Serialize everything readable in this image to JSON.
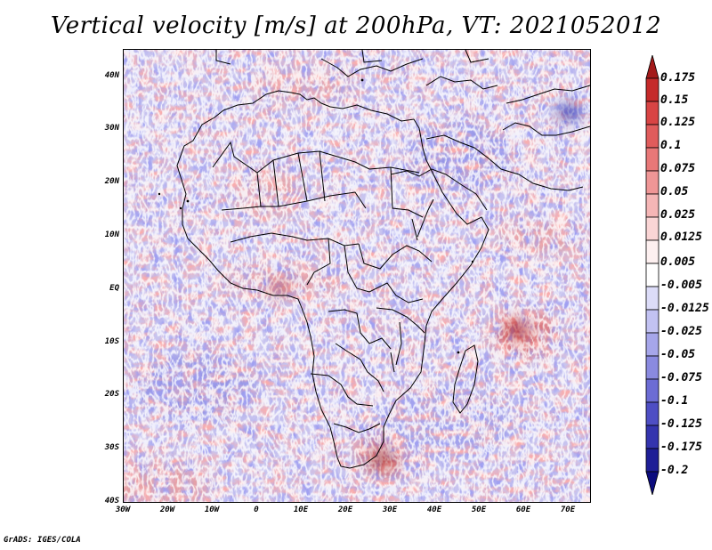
{
  "title": "Vertical velocity [m/s] at 200hPa, VT: 2021052012",
  "footer": "GrADS: IGES/COLA",
  "latitude_labels": [
    "40N",
    "30N",
    "20N",
    "10N",
    "EQ",
    "10S",
    "20S",
    "30S",
    "40S"
  ],
  "longitude_labels": [
    "30W",
    "20W",
    "10W",
    "0",
    "10E",
    "20E",
    "30E",
    "40E",
    "50E",
    "60E",
    "70E"
  ],
  "colorbar": {
    "labels": [
      "0.175",
      "0.15",
      "0.125",
      "0.1",
      "0.075",
      "0.05",
      "0.025",
      "0.0125",
      "0.005",
      "-0.005",
      "-0.0125",
      "-0.025",
      "-0.05",
      "-0.075",
      "-0.1",
      "-0.125",
      "-0.175",
      "-0.2"
    ],
    "colors": [
      "#a31a1a",
      "#c52a2a",
      "#d84444",
      "#e05c5c",
      "#e87878",
      "#ef9696",
      "#f5b6b6",
      "#fad5d5",
      "#fdf0f0",
      "#ffffff",
      "#dcdcf8",
      "#c2c2f2",
      "#a6a6ea",
      "#8a8ae0",
      "#6c6cd4",
      "#4e4ec4",
      "#3434ae",
      "#1e1e96",
      "#0c0c7e"
    ]
  },
  "colors": {
    "background": "#c9c5f0",
    "positive": "#e48a8a",
    "negative": "#7f7fe0",
    "coastline": "#000000"
  }
}
